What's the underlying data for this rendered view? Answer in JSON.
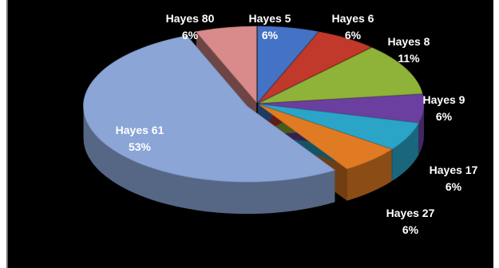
{
  "chart_data": {
    "type": "pie",
    "style": "3d-exploded",
    "background": "#000000",
    "slices": [
      {
        "name": "Hayes 5",
        "value": 6,
        "label": "6%",
        "color": "#4472c4"
      },
      {
        "name": "Hayes 6",
        "value": 6,
        "label": "6%",
        "color": "#c0392b"
      },
      {
        "name": "Hayes 8",
        "value": 11,
        "label": "11%",
        "color": "#8fb339"
      },
      {
        "name": "Hayes 9",
        "value": 6,
        "label": "6%",
        "color": "#6b3fa0"
      },
      {
        "name": "Hayes 17",
        "value": 6,
        "label": "6%",
        "color": "#2aa5c8"
      },
      {
        "name": "Hayes 27",
        "value": 6,
        "label": "6%",
        "color": "#e07b24"
      },
      {
        "name": "Hayes 61",
        "value": 53,
        "label": "53%",
        "color": "#8aa5d6"
      },
      {
        "name": "Hayes 80",
        "value": 6,
        "label": "6%",
        "color": "#d98a8a"
      }
    ]
  }
}
